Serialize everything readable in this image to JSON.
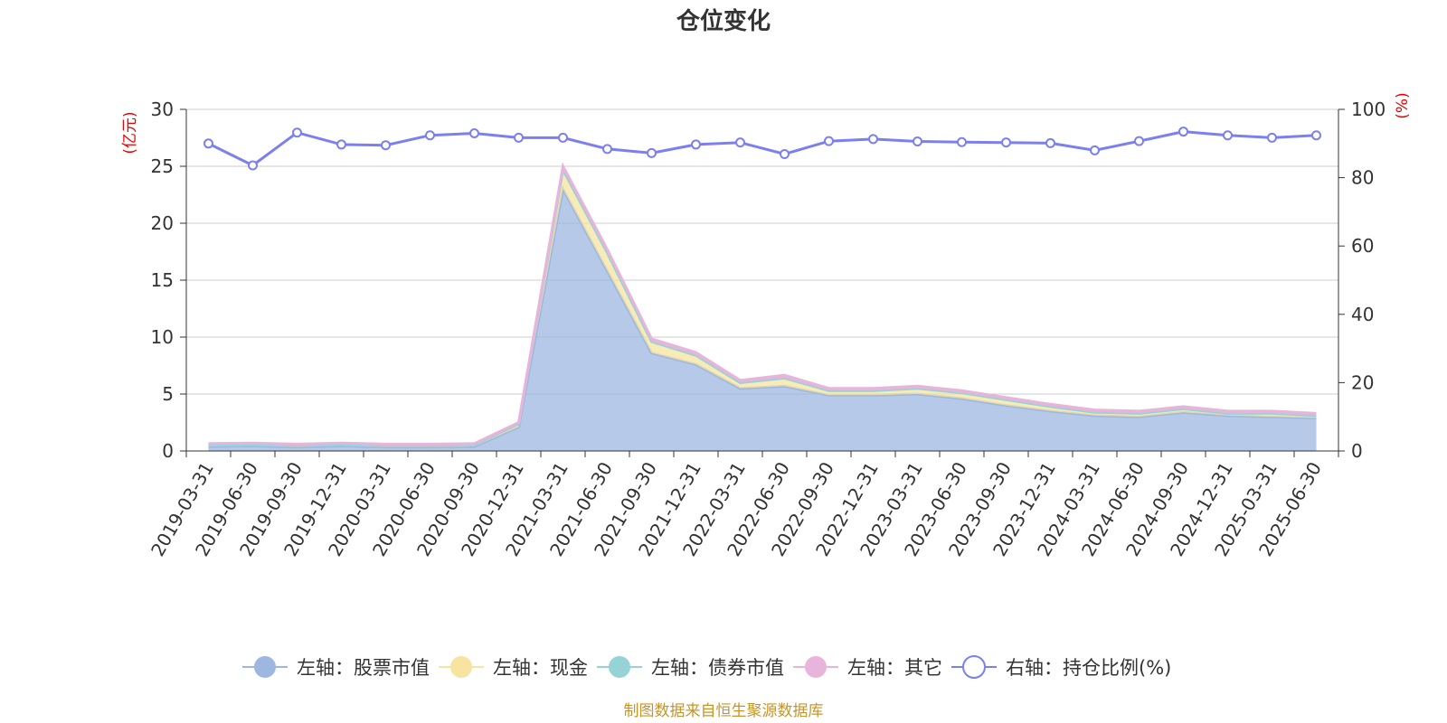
{
  "chart_data": {
    "type": "area",
    "title": "仓位变化",
    "source": "制图数据来自恒生聚源数据库",
    "left_axis": {
      "unit": "(亿元)",
      "range": [
        0,
        30
      ],
      "ticks": [
        "0",
        "5",
        "10",
        "15",
        "20",
        "25",
        "30"
      ]
    },
    "right_axis": {
      "unit": "(%)",
      "range": [
        0,
        100
      ],
      "ticks": [
        "0",
        "20",
        "40",
        "60",
        "80",
        "100"
      ]
    },
    "categories": [
      "2019-03-31",
      "2019-06-30",
      "2019-09-30",
      "2019-12-31",
      "2020-03-31",
      "2020-06-30",
      "2020-09-30",
      "2020-12-31",
      "2021-03-31",
      "2021-06-30",
      "2021-09-30",
      "2021-12-31",
      "2022-03-31",
      "2022-06-30",
      "2022-09-30",
      "2022-12-31",
      "2023-03-31",
      "2023-06-30",
      "2023-09-30",
      "2023-12-31",
      "2024-03-31",
      "2024-06-30",
      "2024-09-30",
      "2024-12-31",
      "2025-03-31",
      "2025-06-30"
    ],
    "series": [
      {
        "name": "左轴：股票市值",
        "axis": "left",
        "stack": true,
        "color": "#9db7e0",
        "values": [
          0.4,
          0.45,
          0.35,
          0.45,
          0.35,
          0.35,
          0.4,
          2.1,
          23.0,
          15.8,
          8.6,
          7.6,
          5.5,
          5.7,
          4.9,
          4.9,
          5.0,
          4.6,
          4.0,
          3.5,
          3.1,
          3.0,
          3.4,
          3.1,
          3.0,
          2.9
        ]
      },
      {
        "name": "左轴：现金",
        "axis": "left",
        "stack": true,
        "color": "#f7e4a0",
        "values": [
          0.15,
          0.15,
          0.15,
          0.15,
          0.15,
          0.15,
          0.15,
          0.3,
          1.7,
          1.6,
          1.0,
          0.8,
          0.5,
          0.7,
          0.4,
          0.4,
          0.5,
          0.5,
          0.5,
          0.4,
          0.3,
          0.3,
          0.3,
          0.2,
          0.3,
          0.2
        ]
      },
      {
        "name": "左轴：债券市值",
        "axis": "left",
        "stack": true,
        "color": "#96d3d6",
        "values": [
          0,
          0,
          0,
          0,
          0,
          0,
          0,
          0,
          0,
          0,
          0,
          0,
          0,
          0,
          0,
          0,
          0,
          0,
          0,
          0,
          0,
          0,
          0,
          0,
          0,
          0
        ]
      },
      {
        "name": "左轴：其它",
        "axis": "left",
        "stack": true,
        "color": "#e8b4db",
        "values": [
          0.1,
          0.1,
          0.1,
          0.1,
          0.1,
          0.1,
          0.1,
          0.1,
          0.3,
          0.3,
          0.25,
          0.25,
          0.2,
          0.25,
          0.2,
          0.2,
          0.2,
          0.2,
          0.2,
          0.2,
          0.2,
          0.2,
          0.2,
          0.2,
          0.2,
          0.2
        ]
      },
      {
        "name": "右轴：持仓比例(%)",
        "axis": "right",
        "type": "line",
        "color": "#7b7ff0",
        "values": [
          90.0,
          83.6,
          93.2,
          89.7,
          89.5,
          92.4,
          93.0,
          91.7,
          91.7,
          88.4,
          87.2,
          89.7,
          90.3,
          86.9,
          90.7,
          91.3,
          90.6,
          90.4,
          90.3,
          90.1,
          88.0,
          90.7,
          93.5,
          92.4,
          91.7,
          92.4
        ]
      }
    ]
  }
}
